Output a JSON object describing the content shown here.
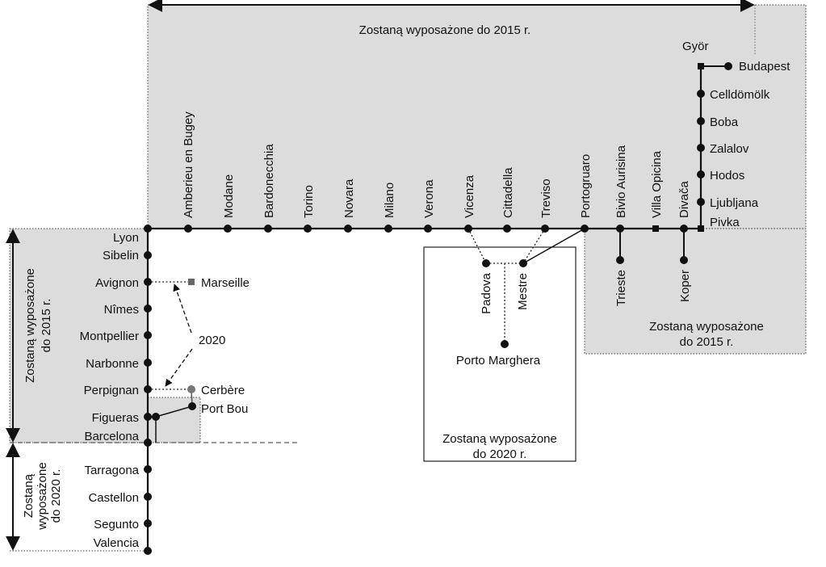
{
  "regions": {
    "top": "Zostaną wyposażone do 2015 r.",
    "left_2015": [
      "Zostaną wyposażone",
      "do 2015 r."
    ],
    "left_2020": [
      "Zostaną",
      "wyposażone",
      "do 2020 r."
    ],
    "right_2015": [
      "Zostaną wyposażone",
      "do 2015 r."
    ],
    "center_2020": [
      "Zostaną wyposażone",
      "do 2020 r."
    ]
  },
  "annotations": {
    "year_2020": "2020"
  },
  "stations": {
    "lyon": "Lyon",
    "amberieu": "Amberieu en Bugey",
    "modane": "Modane",
    "bardonecchia": "Bardonecchia",
    "torino": "Torino",
    "novara": "Novara",
    "milano": "Milano",
    "verona": "Verona",
    "vicenza": "Vicenza",
    "cittadella": "Cittadella",
    "treviso": "Treviso",
    "portogruaro": "Portogruaro",
    "bivio_aurisina": "Bivio Aurisina",
    "villa_opicina": "Villa Opicina",
    "divaca": "Divača",
    "pivka": "Pivka",
    "ljubljana": "Ljubljana",
    "hodos": "Hodos",
    "zalalov": "Zalalov",
    "boba": "Boba",
    "celldomolk": "Celldömölk",
    "gyor": "Györ",
    "budapest": "Budapest",
    "trieste": "Trieste",
    "koper": "Koper",
    "padova": "Padova",
    "mestre": "Mestre",
    "porto_marghera": "Porto Marghera",
    "sibelin": "Sibelin",
    "avignon": "Avignon",
    "marseille": "Marseille",
    "nimes": "Nîmes",
    "montpellier": "Montpellier",
    "narbonne": "Narbonne",
    "perpignan": "Perpignan",
    "cerbere": "Cerbère",
    "port_bou": "Port Bou",
    "figueras": "Figueras",
    "barcelona": "Barcelona",
    "tarragona": "Tarragona",
    "castellon": "Castellon",
    "segunto": "Segunto",
    "valencia": "Valencia"
  }
}
